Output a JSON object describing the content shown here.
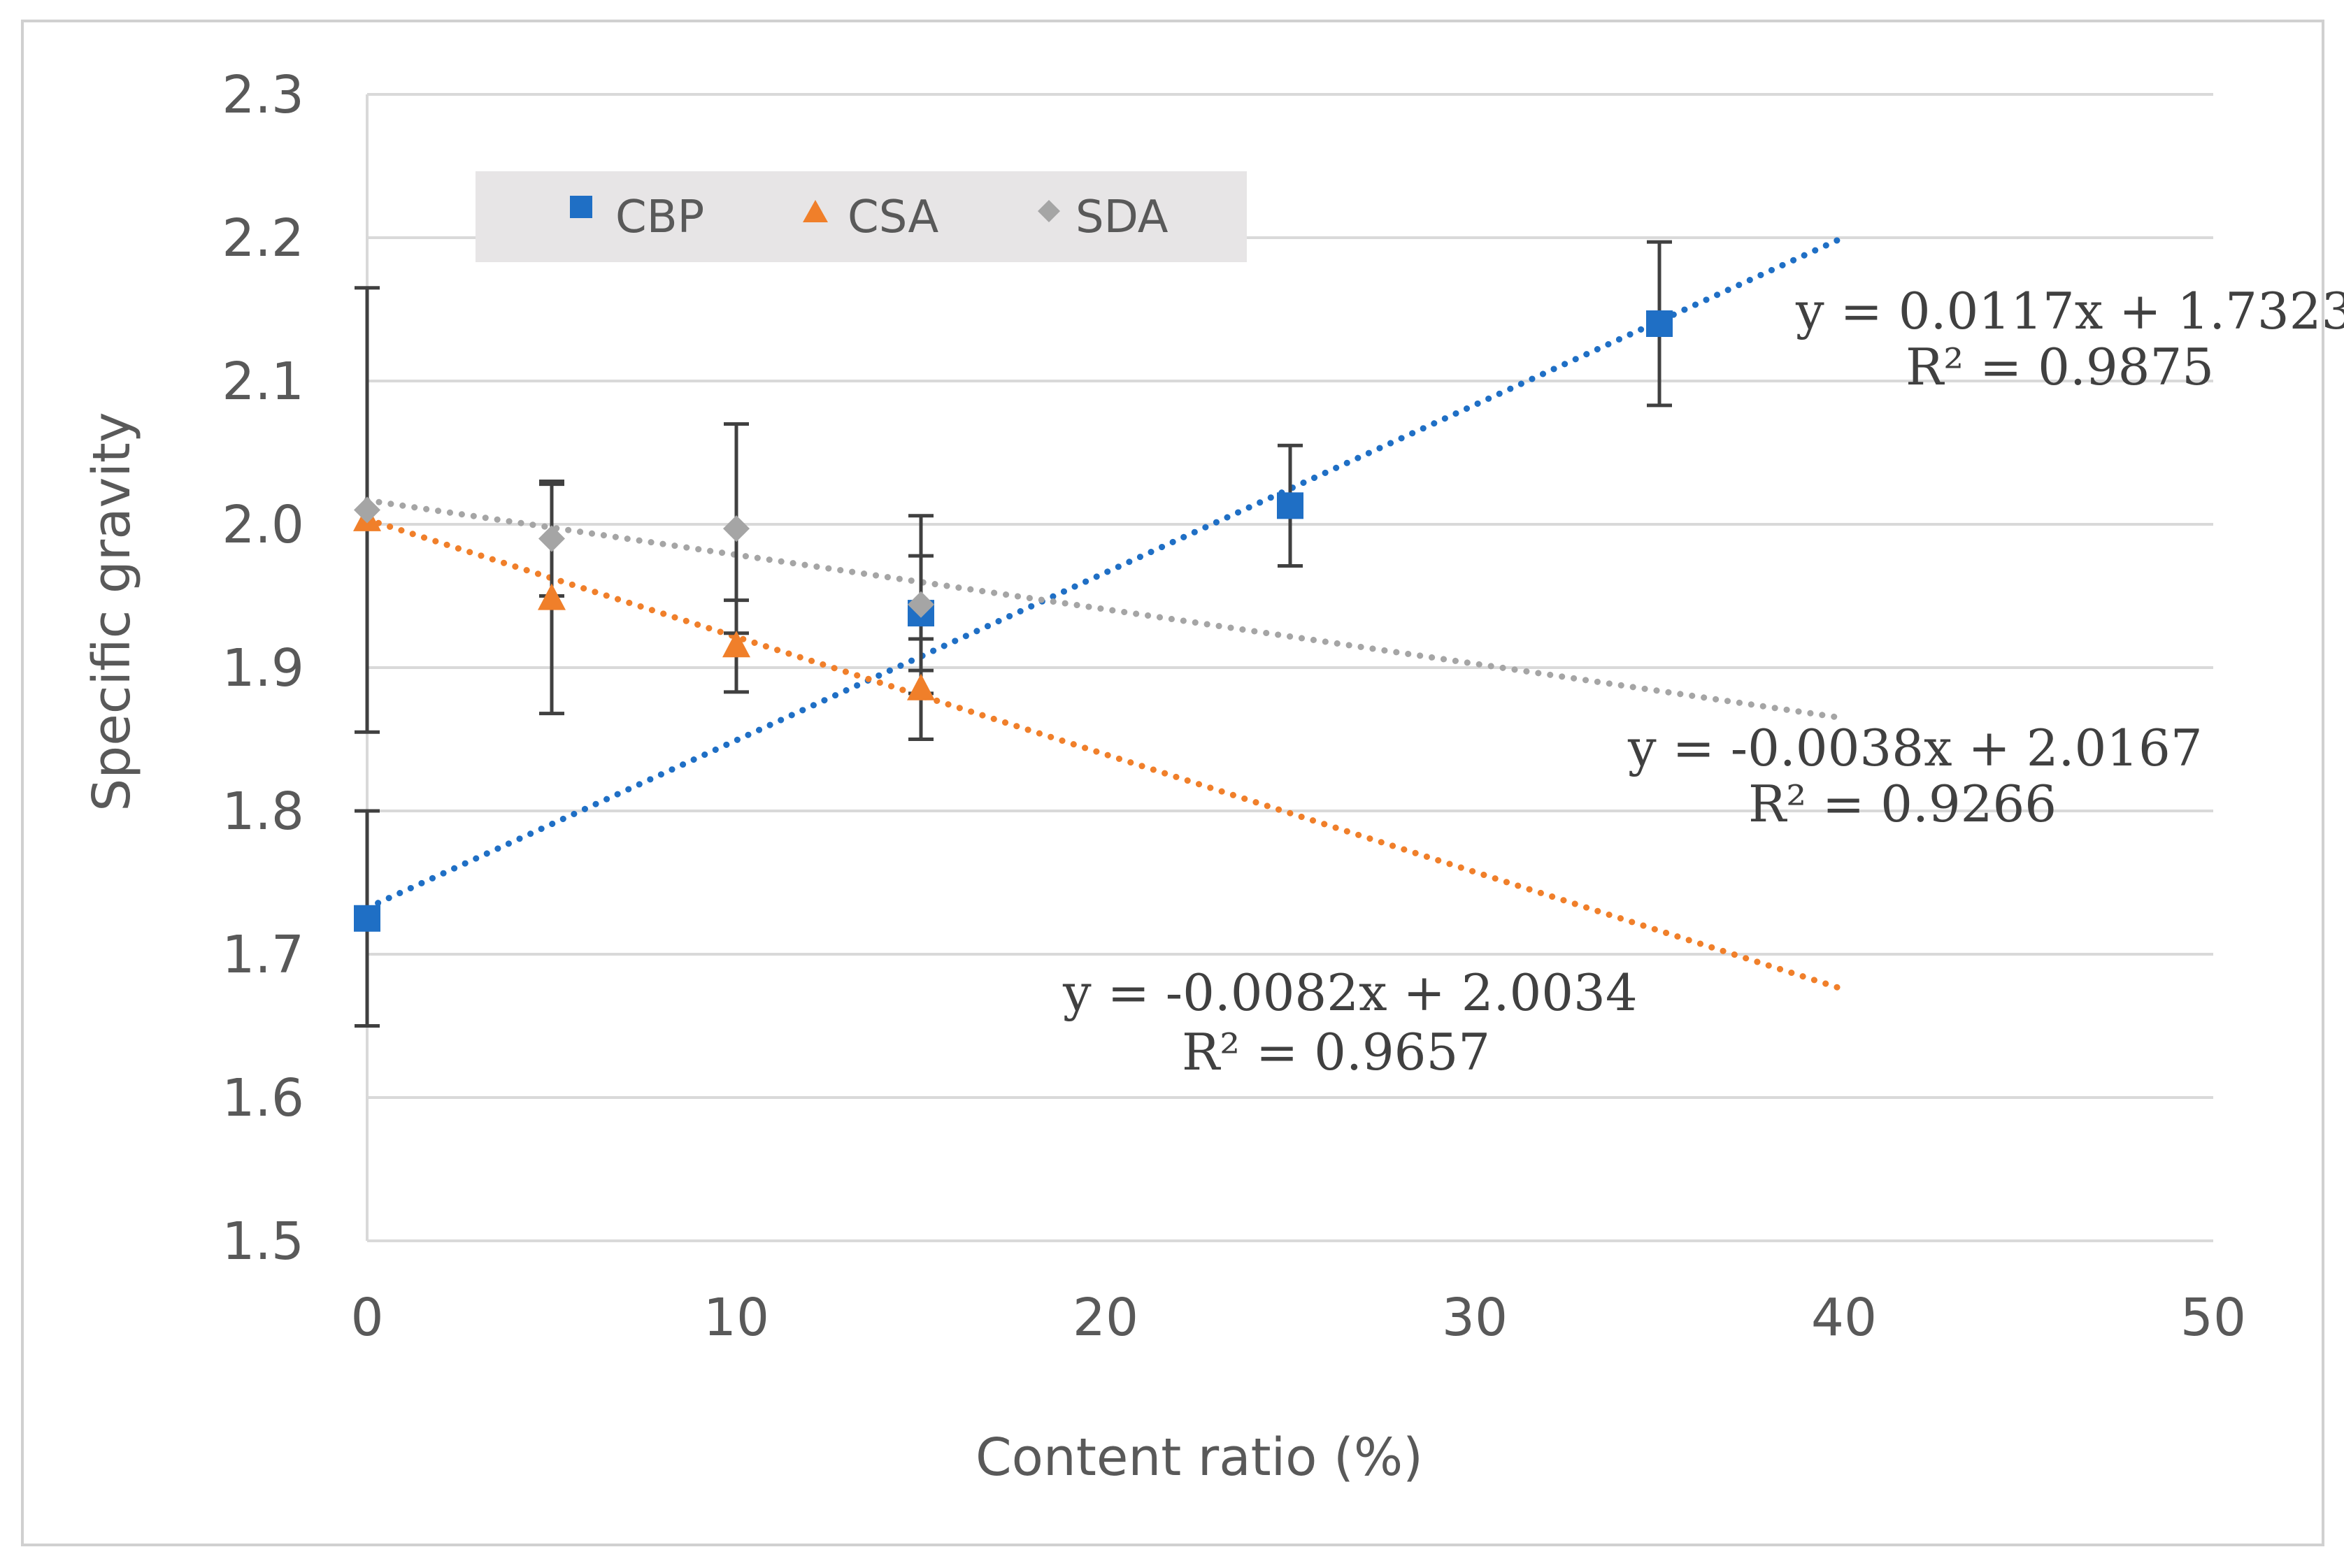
{
  "chart_data": {
    "type": "scatter",
    "title": "",
    "xlabel": "Content ratio (%)",
    "ylabel": "Specific gravity",
    "xlim": [
      0,
      50
    ],
    "ylim": [
      1.5,
      2.3
    ],
    "x_ticks": [
      "0",
      "10",
      "20",
      "30",
      "40",
      "50"
    ],
    "y_ticks": [
      "1.5",
      "1.6",
      "1.7",
      "1.8",
      "1.9",
      "2.0",
      "2.1",
      "2.2",
      "2.3"
    ],
    "x_tick_values": [
      0,
      10,
      20,
      30,
      40,
      50
    ],
    "y_tick_values": [
      1.5,
      1.6,
      1.7,
      1.8,
      1.9,
      2.0,
      2.1,
      2.2,
      2.3
    ],
    "grid": true,
    "legend_position": "top-left",
    "series": [
      {
        "name": "CBP",
        "marker": "square",
        "color": "#1f6fc5",
        "x": [
          0,
          15,
          25,
          35
        ],
        "y": [
          1.725,
          1.938,
          2.013,
          2.14
        ],
        "err": [
          0.075,
          0.04,
          0.042,
          0.057
        ],
        "trendline": {
          "slope": 0.0117,
          "intercept": 1.7323,
          "x_range": [
            0,
            40
          ],
          "equation": "y = 0.0117x + 1.7323",
          "r2": "R² = 0.9875"
        }
      },
      {
        "name": "CSA",
        "marker": "triangle",
        "color": "#f07f2a",
        "x": [
          0,
          5,
          10,
          15
        ],
        "y": [
          2.003,
          1.948,
          1.915,
          1.885
        ],
        "err": [
          0,
          0.08,
          0.032,
          0.035
        ],
        "trendline": {
          "slope": -0.0082,
          "intercept": 2.0034,
          "x_range": [
            0,
            40
          ],
          "equation": "y = -0.0082x + 2.0034",
          "r2": "R² = 0.9657"
        }
      },
      {
        "name": "SDA",
        "marker": "diamond",
        "color": "#a5a5a5",
        "x": [
          0,
          5,
          10,
          15
        ],
        "y": [
          2.01,
          1.99,
          1.997,
          1.944
        ],
        "err": [
          0.155,
          0.04,
          0.073,
          0.062
        ],
        "trendline": {
          "slope": -0.0038,
          "intercept": 2.0167,
          "x_range": [
            0,
            40
          ],
          "equation": "y = -0.0038x + 2.0167",
          "r2": "R² = 0.9266"
        }
      }
    ]
  }
}
